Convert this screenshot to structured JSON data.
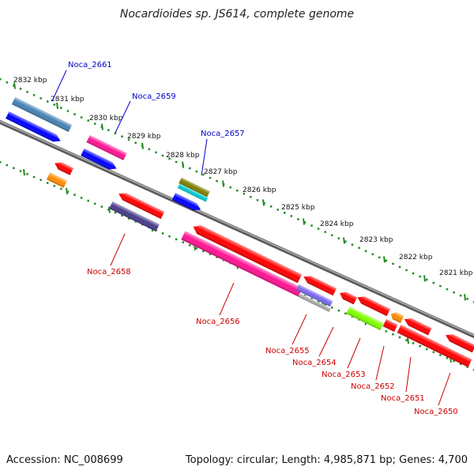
{
  "title": "Nocardioides sp. JS614, complete genome",
  "footer": {
    "accession": "Accession: NC_008699",
    "topology": "Topology: circular; Length: 4,985,871 bp; Genes: 4,700"
  },
  "ticks": [
    "2832 kbp",
    "2831 kbp",
    "2830 kbp",
    "2829 kbp",
    "2828 kbp",
    "2827 kbp",
    "2826 kbp",
    "2825 kbp",
    "2824 kbp",
    "2823 kbp",
    "2822 kbp",
    "2821 kbp"
  ],
  "genes": [
    {
      "label": "Noca_2661",
      "color": "#4682b4",
      "strand": "outer"
    },
    {
      "label": "",
      "color": "#0000ff",
      "strand": "forward"
    },
    {
      "label": "Noca_2659",
      "color": "#ff1493",
      "strand": "outer"
    },
    {
      "label": "",
      "color": "#0000ff",
      "strand": "forward"
    },
    {
      "label": "Noca_2657",
      "color": "#808000",
      "strand": "outer"
    },
    {
      "label": "",
      "color": "#00ced1",
      "strand": "outer"
    },
    {
      "label": "",
      "color": "#0000ff",
      "strand": "forward"
    },
    {
      "label": "",
      "color": "#ff0000",
      "strand": "reverse"
    },
    {
      "label": "",
      "color": "#ff8c00",
      "strand": "reverse"
    },
    {
      "label": "",
      "color": "#ff0000",
      "strand": "reverse"
    },
    {
      "label": "Noca_2658",
      "color": "#483d8b",
      "strand": "reverse"
    },
    {
      "label": "",
      "color": "#ff0000",
      "strand": "reverse"
    },
    {
      "label": "Noca_2656",
      "color": "#ff1493",
      "strand": "reverse"
    },
    {
      "label": "Noca_2655",
      "color": "#7b68ee",
      "strand": "reverse"
    },
    {
      "label": "Noca_2654",
      "color": "#ff0000",
      "strand": "reverse"
    },
    {
      "label": "Noca_2653",
      "color": "#ff0000",
      "strand": "reverse"
    },
    {
      "label": "Noca_2652",
      "color": "#7fff00",
      "strand": "reverse"
    },
    {
      "label": "",
      "color": "#ff0000",
      "strand": "reverse"
    },
    {
      "label": "Noca_2651",
      "color": "#ff0000",
      "strand": "reverse"
    },
    {
      "label": "Noca_2650",
      "color": "#ff8c00",
      "strand": "reverse"
    },
    {
      "label": "",
      "color": "#ff0000",
      "strand": "reverse"
    }
  ],
  "colors": {
    "backbone": "#808080",
    "tick": "#228b22",
    "blue_label": "#0000cc",
    "red_label": "#cc0000"
  }
}
